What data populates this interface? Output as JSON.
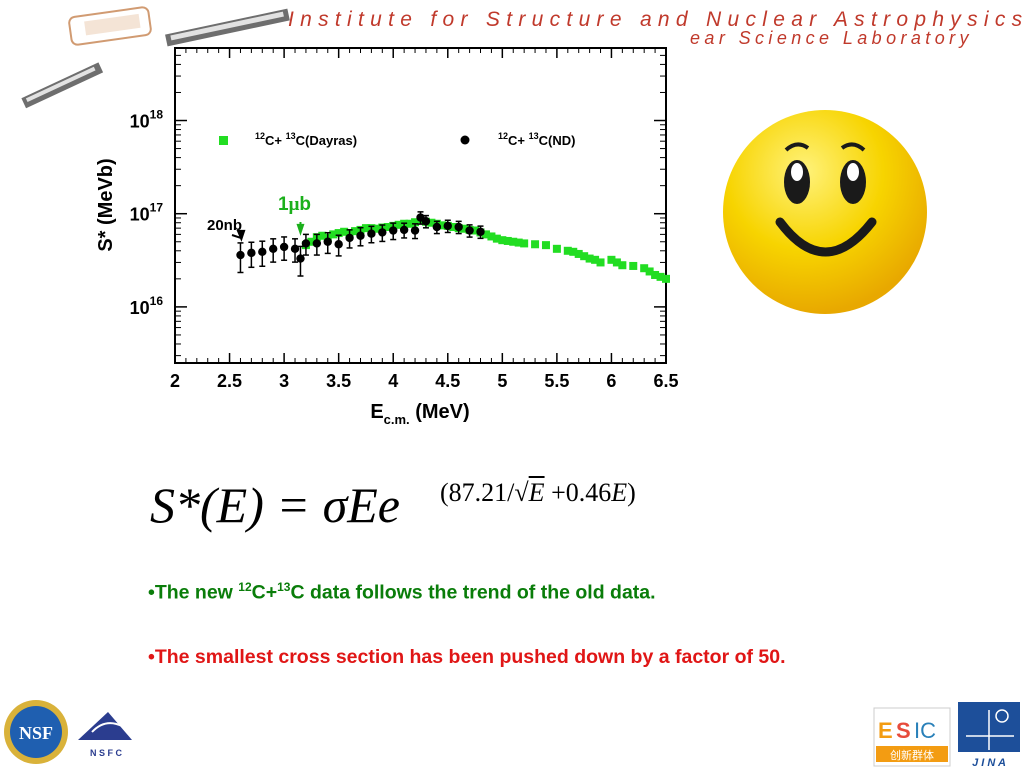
{
  "header": {
    "line1": "Institute for Structure and Nuclear Astrophysics",
    "line2": "ear Science Laboratory"
  },
  "chart_data": {
    "type": "scatter",
    "x_scale": "linear",
    "y_scale": "log",
    "xlabel_main": "E",
    "xlabel_sub": "c.m.",
    "xlabel_rest": " (MeV)",
    "ylabel": "S* (MeVb)",
    "xlim": [
      2,
      6.5
    ],
    "ylim": [
      2500000000000000.0,
      6e+18
    ],
    "x_ticks": [
      "2",
      "2.5",
      "3",
      "3.5",
      "4",
      "4.5",
      "5",
      "5.5",
      "6",
      "6.5"
    ],
    "y_ticks": [
      {
        "base": "10",
        "exp": "16",
        "value": 1e+16
      },
      {
        "base": "10",
        "exp": "17",
        "value": 1e+17
      },
      {
        "base": "10",
        "exp": "18",
        "value": 1e+18
      }
    ],
    "legend_position": "top",
    "series": [
      {
        "name_pre": "",
        "name_a": "12",
        "name_mid": "C+ ",
        "name_b": "13",
        "name_post": "C(Dayras)",
        "marker": "square",
        "color": "#22dd22",
        "x": [
          3.2,
          3.25,
          3.3,
          3.35,
          3.4,
          3.45,
          3.5,
          3.55,
          3.6,
          3.65,
          3.7,
          3.75,
          3.8,
          3.85,
          3.9,
          3.95,
          4.0,
          4.05,
          4.1,
          4.15,
          4.2,
          4.25,
          4.3,
          4.35,
          4.4,
          4.45,
          4.5,
          4.55,
          4.6,
          4.65,
          4.7,
          4.75,
          4.8,
          4.85,
          4.9,
          4.95,
          5.0,
          5.05,
          5.1,
          5.15,
          5.2,
          5.3,
          5.4,
          5.5,
          5.6,
          5.65,
          5.7,
          5.75,
          5.8,
          5.85,
          5.9,
          6.0,
          6.05,
          6.1,
          6.2,
          6.3,
          6.35,
          6.4,
          6.45,
          6.5
        ],
        "y": [
          4.6e+16,
          5e+16,
          5.6e+16,
          5.8e+16,
          5.5e+16,
          6e+16,
          6.2e+16,
          6.4e+16,
          6.2e+16,
          6.5e+16,
          6.7e+16,
          7e+16,
          7e+16,
          6.9e+16,
          7.1e+16,
          7.2e+16,
          7.4e+16,
          7.6e+16,
          7.8e+16,
          7.8e+16,
          8.1e+16,
          8.5e+16,
          8.2e+16,
          8e+16,
          7.8e+16,
          7.5e+16,
          7.4e+16,
          7.2e+16,
          7e+16,
          6.9e+16,
          6.7e+16,
          6.6e+16,
          6.3e+16,
          6e+16,
          5.7e+16,
          5.4e+16,
          5.2e+16,
          5.1e+16,
          5e+16,
          4.9e+16,
          4.8e+16,
          4.7e+16,
          4.6e+16,
          4.2e+16,
          4e+16,
          3.9e+16,
          3.7e+16,
          3.5e+16,
          3.3e+16,
          3.2e+16,
          3e+16,
          3.2e+16,
          3e+16,
          2.8e+16,
          2.75e+16,
          2.6e+16,
          2.4e+16,
          2.2e+16,
          2.1e+16,
          2e+16
        ]
      },
      {
        "name_pre": "",
        "name_a": "12",
        "name_mid": "C+ ",
        "name_b": "13",
        "name_post": "C(ND)",
        "marker": "circle",
        "color": "#000000",
        "x": [
          2.6,
          2.7,
          2.8,
          2.9,
          3.0,
          3.1,
          3.15,
          3.2,
          3.3,
          3.4,
          3.5,
          3.6,
          3.7,
          3.8,
          3.9,
          4.0,
          4.1,
          4.2,
          4.25,
          4.3,
          4.4,
          4.5,
          4.6,
          4.7,
          4.8
        ],
        "y": [
          3.6e+16,
          3.8e+16,
          3.9e+16,
          4.2e+16,
          4.4e+16,
          4.2e+16,
          3.3e+16,
          4.8e+16,
          4.8e+16,
          5e+16,
          4.7e+16,
          5.5e+16,
          5.8e+16,
          6.1e+16,
          6.3e+16,
          6.6e+16,
          6.7e+16,
          6.6e+16,
          9.1e+16,
          8.3e+16,
          7.2e+16,
          7.4e+16,
          7.2e+16,
          6.6e+16,
          6.4e+16
        ],
        "err_frac": [
          0.35,
          0.3,
          0.3,
          0.28,
          0.28,
          0.28,
          0.35,
          0.25,
          0.25,
          0.25,
          0.25,
          0.22,
          0.22,
          0.2,
          0.2,
          0.2,
          0.18,
          0.18,
          0.15,
          0.15,
          0.15,
          0.15,
          0.15,
          0.15,
          0.15
        ]
      }
    ],
    "annotations": [
      {
        "text": "20nb",
        "color": "#000000",
        "arrow_to_x": 2.6,
        "arrow_to_y": 4.3e+16
      },
      {
        "text_pre": "1",
        "text_greek": "μ",
        "text_post": "b",
        "color": "#1bb01b",
        "arrow_to_x": 3.15,
        "arrow_to_y": 5.5e+16
      }
    ]
  },
  "formula": {
    "lhs": "S*(E) = σEe",
    "exp_a": "(87.21/",
    "exp_sqrt": "√",
    "exp_b": "E",
    "exp_c": " +0.46",
    "exp_d": "E",
    "exp_e": ")"
  },
  "bullets": {
    "b1_pre": "•The new ",
    "b1_a": "12",
    "b1_mid": "C+",
    "b1_b": "13",
    "b1_post": "C data follows the trend of the old data.",
    "b2": "•The smallest cross section has been pushed down by a factor of 50."
  },
  "logos": {
    "nsf": "NSF",
    "nsfc": "N S F C",
    "esic_e": "E",
    "esic_s": "S",
    "esic_ic": "IC",
    "esic_cn": "创新群体",
    "jina": "J I N A"
  },
  "colors": {
    "header": "#c0392b",
    "bullet_green": "#0a7d0a",
    "bullet_red": "#e01616",
    "smiley": "#f5cc00"
  }
}
